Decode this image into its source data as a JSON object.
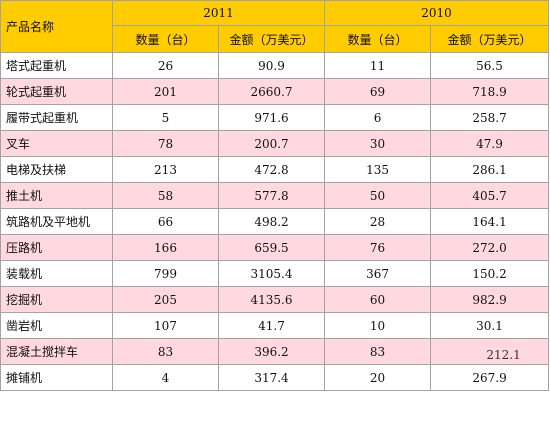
{
  "table": {
    "product_header": "产品名称",
    "years": [
      "2011",
      "2010"
    ],
    "subheaders": [
      "数量（台）",
      "金额（万美元）",
      "数量（台）",
      "金额（万美元）"
    ],
    "rows": [
      {
        "name": "塔式起重机",
        "q2011": "26",
        "a2011": "90.9",
        "q2010": "11",
        "a2010": "56.5"
      },
      {
        "name": "轮式起重机",
        "q2011": "201",
        "a2011": "2660.7",
        "q2010": "69",
        "a2010": "718.9"
      },
      {
        "name": "履带式起重机",
        "q2011": "5",
        "a2011": "971.6",
        "q2010": "6",
        "a2010": "258.7"
      },
      {
        "name": "叉车",
        "q2011": "78",
        "a2011": "200.7",
        "q2010": "30",
        "a2010": "47.9"
      },
      {
        "name": "电梯及扶梯",
        "q2011": "213",
        "a2011": "472.8",
        "q2010": "135",
        "a2010": "286.1"
      },
      {
        "name": "推土机",
        "q2011": "58",
        "a2011": "577.8",
        "q2010": "50",
        "a2010": "405.7"
      },
      {
        "name": "筑路机及平地机",
        "q2011": "66",
        "a2011": "498.2",
        "q2010": "28",
        "a2010": "164.1"
      },
      {
        "name": "压路机",
        "q2011": "166",
        "a2011": "659.5",
        "q2010": "76",
        "a2010": "272.0"
      },
      {
        "name": "装载机",
        "q2011": "799",
        "a2011": "3105.4",
        "q2010": "367",
        "a2010": "150.2"
      },
      {
        "name": "挖掘机",
        "q2011": "205",
        "a2011": "4135.6",
        "q2010": "60",
        "a2010": "982.9"
      },
      {
        "name": "凿岩机",
        "q2011": "107",
        "a2011": "41.7",
        "q2010": "10",
        "a2010": "30.1"
      },
      {
        "name": "混凝土搅拌车",
        "q2011": "83",
        "a2011": "396.2",
        "q2010": "83",
        "a2010": "212.1"
      },
      {
        "name": "摊铺机",
        "q2011": "4",
        "a2011": "317.4",
        "q2010": "20",
        "a2010": "267.9"
      }
    ]
  }
}
